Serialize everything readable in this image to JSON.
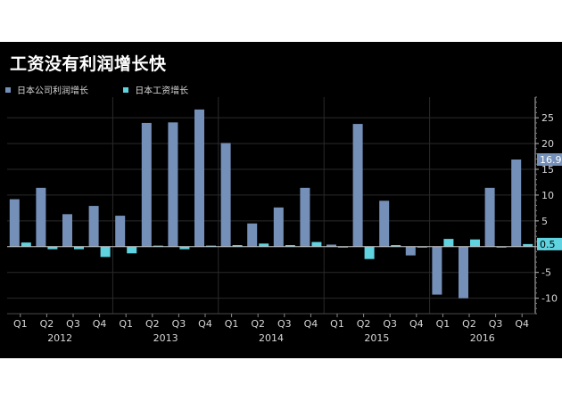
{
  "chart_data": {
    "type": "bar",
    "title": "工资没有利润增长快",
    "xlabel": "",
    "ylabel": "",
    "ylim": [
      -13,
      29
    ],
    "yticks": [
      -10,
      -5,
      0,
      5,
      10,
      15,
      20,
      25
    ],
    "grid": true,
    "legend_position": "top-left",
    "categories": [
      "Q1",
      "Q2",
      "Q3",
      "Q4",
      "Q1",
      "Q2",
      "Q3",
      "Q4",
      "Q1",
      "Q2",
      "Q3",
      "Q4",
      "Q1",
      "Q2",
      "Q3",
      "Q4",
      "Q1",
      "Q2",
      "Q3",
      "Q4"
    ],
    "years": [
      {
        "label": "2012",
        "quarters": 4
      },
      {
        "label": "2013",
        "quarters": 4
      },
      {
        "label": "2014",
        "quarters": 4
      },
      {
        "label": "2015",
        "quarters": 4
      },
      {
        "label": "2016",
        "quarters": 4
      }
    ],
    "series": [
      {
        "name": "日本公司利润增长",
        "color": "#7590b8",
        "values": [
          9.2,
          11.4,
          6.3,
          7.9,
          6.0,
          24.0,
          24.1,
          26.6,
          20.1,
          4.5,
          7.6,
          11.4,
          0.4,
          23.8,
          8.9,
          -1.7,
          -9.3,
          -10.0,
          11.4,
          16.9
        ]
      },
      {
        "name": "日本工资增长",
        "color": "#5fd3e0",
        "values": [
          0.8,
          -0.5,
          -0.5,
          -2.0,
          -1.3,
          0.2,
          -0.5,
          0.2,
          0.3,
          0.6,
          0.3,
          0.9,
          -0.1,
          -2.4,
          0.3,
          -0.1,
          1.5,
          1.4,
          -0.1,
          0.5
        ]
      }
    ],
    "last_value_labels": [
      "16.9",
      "0.5"
    ]
  }
}
